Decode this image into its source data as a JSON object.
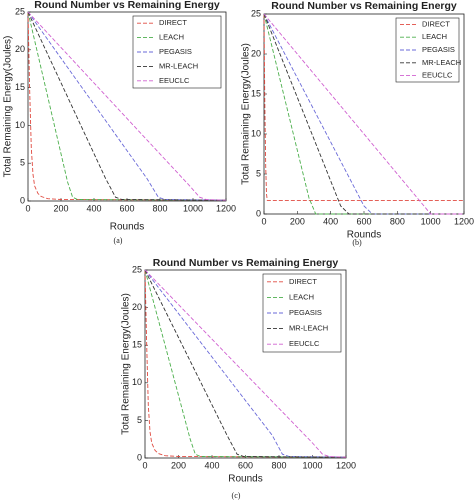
{
  "chart_data": [
    {
      "type": "line",
      "title": "Round Number vs Remaining Energy",
      "xlabel": "Rounds",
      "ylabel": "Total Remaining Energy(Joules)",
      "caption": "(a)",
      "xlim": [
        0,
        1200
      ],
      "xticks": [
        0,
        200,
        400,
        600,
        800,
        1000,
        1200
      ],
      "ylim": [
        0,
        25
      ],
      "yticks": [
        0,
        5,
        10,
        15,
        20,
        25
      ],
      "legend": "upper right",
      "series": [
        {
          "name": "DIRECT",
          "color": "#e04a40",
          "x": [
            0,
            10,
            20,
            30,
            40,
            60,
            80,
            120,
            200,
            1200
          ],
          "values": [
            25,
            15,
            7,
            3.5,
            2,
            1,
            0.6,
            0.3,
            0.2,
            0.1
          ]
        },
        {
          "name": "LEACH",
          "color": "#4caf4c",
          "x": [
            0,
            240,
            270,
            300,
            1200
          ],
          "values": [
            25,
            2.5,
            0.5,
            0.2,
            0.1
          ]
        },
        {
          "name": "PEGASIS",
          "color": "#6a6ad8",
          "x": [
            0,
            720,
            790,
            830,
            1200
          ],
          "values": [
            25,
            3,
            0.5,
            0.2,
            0.1
          ]
        },
        {
          "name": "MR-LEACH",
          "color": "#333333",
          "x": [
            0,
            470,
            530,
            570,
            1200
          ],
          "values": [
            25,
            3,
            0.5,
            0.2,
            0.1
          ]
        },
        {
          "name": "EEUCLC",
          "color": "#d060d0",
          "x": [
            0,
            980,
            1040,
            1080,
            1200
          ],
          "values": [
            25,
            2,
            0.5,
            0.2,
            0.1
          ]
        }
      ]
    },
    {
      "type": "line",
      "title": "Round Number vs Remaining Energy",
      "xlabel": "Rounds",
      "ylabel": "Total Remaining Energy(Joules)",
      "caption": "(b)",
      "xlim": [
        0,
        1200
      ],
      "xticks": [
        0,
        200,
        400,
        600,
        800,
        1000,
        1200
      ],
      "ylim": [
        0,
        25
      ],
      "yticks": [
        0,
        5,
        10,
        15,
        20,
        25
      ],
      "legend": "upper right",
      "series": [
        {
          "name": "DIRECT",
          "color": "#e04a40",
          "x": [
            0,
            5,
            10,
            15,
            20,
            1200
          ],
          "values": [
            25,
            14,
            6,
            2.5,
            1.7,
            1.7
          ]
        },
        {
          "name": "LEACH",
          "color": "#4caf4c",
          "x": [
            0,
            270,
            310,
            1200
          ],
          "values": [
            25,
            2,
            0,
            0
          ]
        },
        {
          "name": "PEGASIS",
          "color": "#6a6ad8",
          "x": [
            0,
            600,
            650,
            1200
          ],
          "values": [
            25,
            1,
            0,
            0
          ]
        },
        {
          "name": "MR-LEACH",
          "color": "#333333",
          "x": [
            0,
            460,
            510,
            1200
          ],
          "values": [
            25,
            1,
            0,
            0
          ]
        },
        {
          "name": "EEUCLC",
          "color": "#d060d0",
          "x": [
            0,
            960,
            1000,
            1200
          ],
          "values": [
            25,
            1,
            0,
            0
          ]
        }
      ]
    },
    {
      "type": "line",
      "title": "Round Number vs Remaining Energy",
      "xlabel": "Rounds",
      "ylabel": "Total Remaining Energy(Joules)",
      "caption": "(c)",
      "xlim": [
        0,
        1200
      ],
      "xticks": [
        0,
        200,
        400,
        600,
        800,
        1000,
        1200
      ],
      "ylim": [
        0,
        25
      ],
      "yticks": [
        0,
        5,
        10,
        15,
        20,
        25
      ],
      "legend": "upper right",
      "series": [
        {
          "name": "DIRECT",
          "color": "#e04a40",
          "x": [
            0,
            10,
            20,
            30,
            40,
            60,
            80,
            120,
            200,
            1200
          ],
          "values": [
            25,
            15,
            7,
            3.5,
            2,
            1,
            0.6,
            0.3,
            0.2,
            0.1
          ]
        },
        {
          "name": "LEACH",
          "color": "#4caf4c",
          "x": [
            0,
            270,
            300,
            330,
            1200
          ],
          "values": [
            25,
            2.5,
            0.5,
            0.2,
            0.1
          ]
        },
        {
          "name": "PEGASIS",
          "color": "#6a6ad8",
          "x": [
            0,
            760,
            820,
            860,
            1200
          ],
          "values": [
            25,
            3,
            0.5,
            0.2,
            0.1
          ]
        },
        {
          "name": "MR-LEACH",
          "color": "#333333",
          "x": [
            0,
            490,
            550,
            590,
            1200
          ],
          "values": [
            25,
            3,
            0.5,
            0.2,
            0.1
          ]
        },
        {
          "name": "EEUCLC",
          "color": "#d060d0",
          "x": [
            0,
            1000,
            1060,
            1100,
            1200
          ],
          "values": [
            25,
            2,
            0.5,
            0.2,
            0.1
          ]
        }
      ]
    }
  ]
}
